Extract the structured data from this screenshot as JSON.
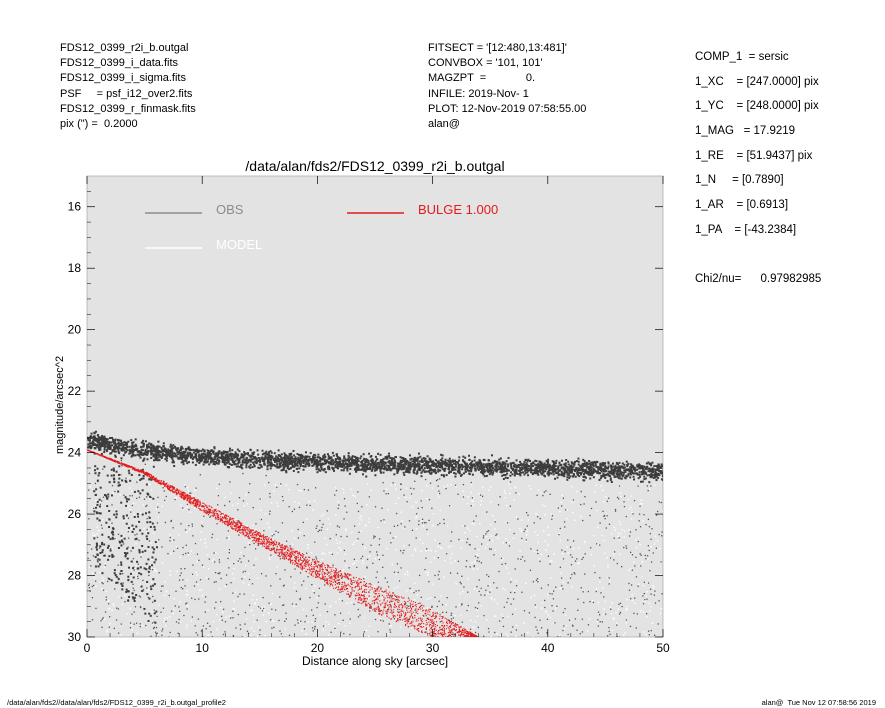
{
  "header_left": [
    "FDS12_0399_r2i_b.outgal",
    "FDS12_0399_i_data.fits",
    "FDS12_0399_i_sigma.fits",
    "PSF     = psf_i12_over2.fits",
    "FDS12_0399_r_finmask.fits",
    "pix (\") =  0.2000"
  ],
  "header_mid": [
    "FITSECT = '[12:480,13:481]'",
    "CONVBOX = '101, 101'",
    "MAGZPT  =             0.",
    "INFILE: 2019-Nov- 1",
    "PLOT: 12-Nov-2019 07:58:55.00",
    "alan@"
  ],
  "header_right": [
    "COMP_1  = sersic",
    "1_XC    = [247.0000] pix",
    "1_YC    = [248.0000] pix",
    "1_MAG   = 17.9219",
    "1_RE    = [51.9437] pix",
    "1_N     = [0.7890]",
    "1_AR    = [0.6913]",
    "1_PA    = [-43.2384]"
  ],
  "chi2": "Chi2/nu=      0.97982985",
  "footer_left": "/data/alan/fds2//data/alan/fds2/FDS12_0399_r2i_b.outgal_profile2",
  "footer_right": "alan@  Tue Nov 12 07:58:56 2019",
  "colors": {
    "plot_bg": "#e3e3e3",
    "obs": "#3c3c3c",
    "model": "#ffffff",
    "bulge": "#e41a1c",
    "obs_legend": "#8c8c8c"
  },
  "chart_data": {
    "type": "scatter",
    "title": "/data/alan/fds2/FDS12_0399_r2i_b.outgal",
    "xlabel": "Distance along sky [arcsec]",
    "ylabel": "magnitude/arcsec^2",
    "xlim": [
      0,
      50
    ],
    "ylim": [
      30,
      15
    ],
    "y_inverted": true,
    "grid": false,
    "x_ticks": [
      "0",
      "10",
      "20",
      "30",
      "40",
      "50"
    ],
    "y_ticks": [
      "16",
      "18",
      "20",
      "22",
      "24",
      "26",
      "28",
      "30"
    ],
    "legend": [
      {
        "label": "OBS",
        "color": "#8c8c8c"
      },
      {
        "label": "MODEL",
        "color": "#ffffff"
      },
      {
        "label": "BULGE  1.000",
        "color": "#e41a1c"
      }
    ],
    "series": [
      {
        "name": "OBS",
        "description_points": "dense band of observed pixels near 24 mag plus scattered cloud",
        "band": {
          "x": [
            0,
            5,
            10,
            20,
            30,
            40,
            50
          ],
          "y": [
            23.6,
            23.9,
            24.1,
            24.3,
            24.4,
            24.5,
            24.6
          ],
          "spread": 0.35
        },
        "inner_cloud": {
          "x_range": [
            0.5,
            6
          ],
          "y_range": [
            24.5,
            29.5
          ]
        },
        "cloud_density_note": "scattered points fill region 24.5-30 mag across full x range"
      },
      {
        "name": "BULGE  1.000",
        "x": [
          0,
          5,
          10,
          15,
          20,
          25,
          30,
          34
        ],
        "y_upper": [
          23.9,
          24.6,
          25.6,
          26.6,
          27.5,
          28.3,
          29.1,
          30.0
        ],
        "y_lower": [
          23.9,
          24.7,
          25.9,
          27.0,
          28.1,
          29.2,
          30.0,
          30.0
        ],
        "x_end_lower": 23.5
      }
    ]
  }
}
